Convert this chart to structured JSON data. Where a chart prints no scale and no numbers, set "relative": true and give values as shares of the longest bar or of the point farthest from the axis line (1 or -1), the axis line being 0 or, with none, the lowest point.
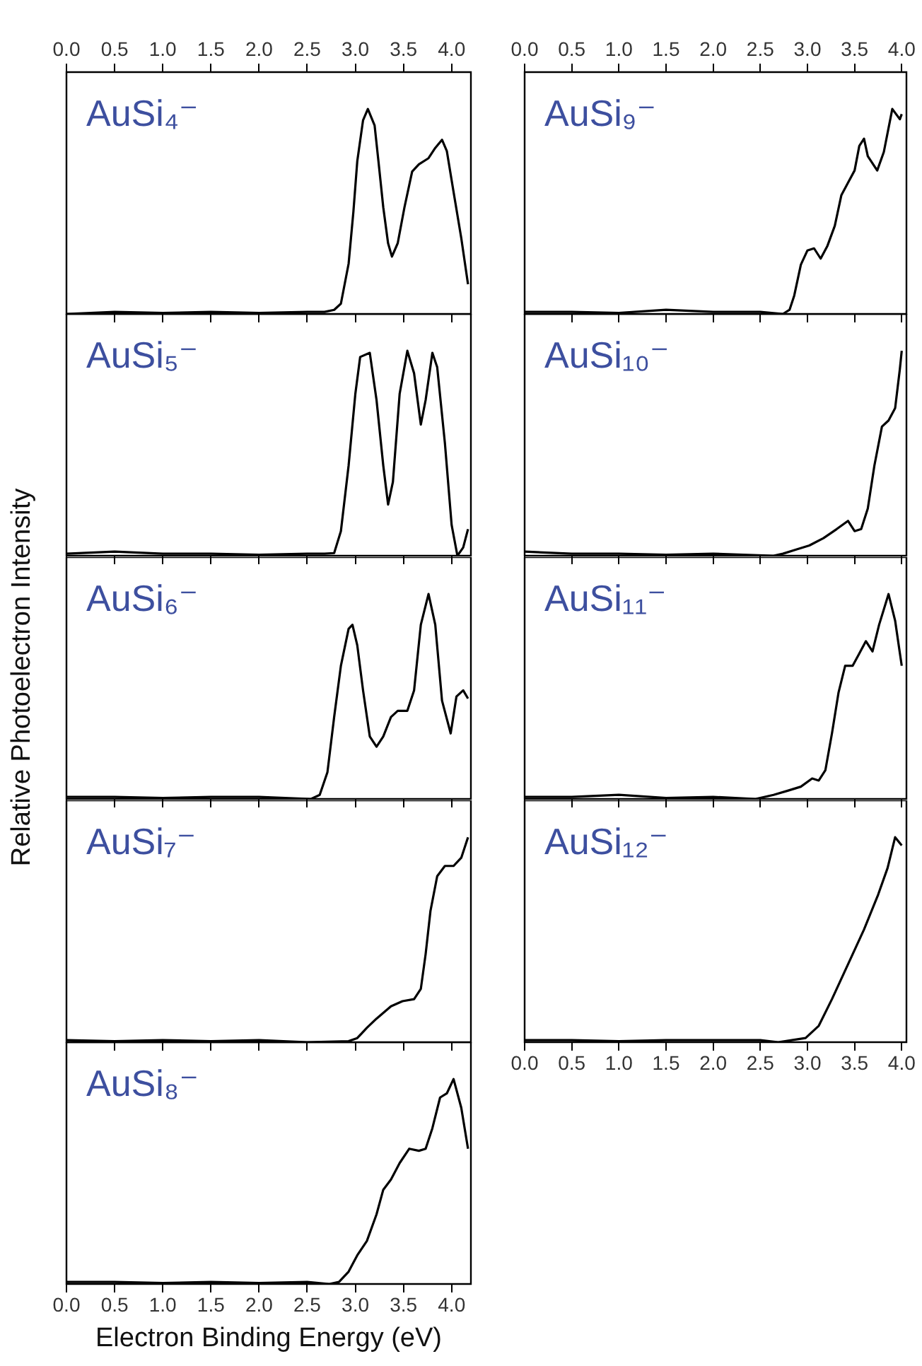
{
  "chart_data": [
    {
      "type": "line",
      "title": "AuSi₄⁻",
      "relative": true,
      "xlim": [
        0,
        4.2
      ],
      "xticks": [
        {
          "value": 0,
          "label": "0.0"
        },
        {
          "value": 0.5,
          "label": "0.5"
        },
        {
          "value": 1,
          "label": "1.0"
        },
        {
          "value": 1.5,
          "label": "1.5"
        },
        {
          "value": 2,
          "label": "2.0"
        },
        {
          "value": 2.5,
          "label": "2.5"
        },
        {
          "value": 3,
          "label": "3.0"
        },
        {
          "value": 3.5,
          "label": "3.5"
        },
        {
          "value": 4,
          "label": "4.0"
        }
      ],
      "x": [
        0,
        0.5,
        1,
        1.5,
        2,
        2.5,
        2.68,
        2.78,
        2.85,
        2.93,
        2.98,
        3.02,
        3.08,
        3.13,
        3.2,
        3.24,
        3.29,
        3.34,
        3.38,
        3.44,
        3.51,
        3.59,
        3.66,
        3.76,
        3.83,
        3.9,
        3.95,
        4.02,
        4.1,
        4.17
      ],
      "series": [
        {
          "color": "#000000",
          "values": [
            0,
            0.01,
            0.005,
            0.01,
            0.005,
            0.01,
            0.01,
            0.02,
            0.05,
            0.245,
            0.5,
            0.745,
            0.945,
            1,
            0.92,
            0.745,
            0.52,
            0.345,
            0.28,
            0.345,
            0.52,
            0.695,
            0.73,
            0.76,
            0.81,
            0.85,
            0.795,
            0.595,
            0.37,
            0.145
          ]
        }
      ]
    },
    {
      "type": "line",
      "title": "AuSi₅⁻",
      "relative": true,
      "xlim": [
        0,
        4.2
      ],
      "tick_labels": false,
      "x": [
        0,
        0.5,
        1,
        1.5,
        2,
        2.5,
        2.68,
        2.78,
        2.85,
        2.93,
        3.0,
        3.05,
        3.15,
        3.22,
        3.29,
        3.34,
        3.39,
        3.46,
        3.54,
        3.61,
        3.68,
        3.73,
        3.8,
        3.85,
        3.93,
        4.0,
        4.06,
        4.12,
        4.17
      ],
      "series": [
        {
          "color": "#000000",
          "values": [
            0.01,
            0.02,
            0.01,
            0.01,
            0.005,
            0.01,
            0.01,
            0.013,
            0.12,
            0.44,
            0.79,
            0.97,
            0.99,
            0.76,
            0.44,
            0.25,
            0.36,
            0.79,
            1,
            0.89,
            0.64,
            0.76,
            0.99,
            0.92,
            0.55,
            0.15,
            0,
            0.04,
            0.13
          ]
        }
      ]
    },
    {
      "type": "line",
      "title": "AuSi₆⁻",
      "ylabel": "Relative Photoelectron Intensity",
      "relative": true,
      "xlim": [
        0,
        4.2
      ],
      "tick_labels": false,
      "x": [
        0,
        0.5,
        1,
        1.5,
        2,
        2.54,
        2.63,
        2.71,
        2.78,
        2.85,
        2.93,
        2.97,
        3.02,
        3.08,
        3.15,
        3.22,
        3.29,
        3.37,
        3.44,
        3.54,
        3.61,
        3.68,
        3.76,
        3.83,
        3.9,
        3.99,
        4.05,
        4.12,
        4.17
      ],
      "series": [
        {
          "color": "#000000",
          "values": [
            0.01,
            0.01,
            0.005,
            0.01,
            0.01,
            0,
            0.02,
            0.13,
            0.4,
            0.65,
            0.83,
            0.85,
            0.75,
            0.53,
            0.305,
            0.255,
            0.305,
            0.4,
            0.43,
            0.43,
            0.53,
            0.85,
            1,
            0.85,
            0.48,
            0.32,
            0.5,
            0.53,
            0.49
          ]
        }
      ]
    },
    {
      "type": "line",
      "title": "AuSi₇⁻",
      "relative": true,
      "xlim": [
        0,
        4.2
      ],
      "tick_labels": false,
      "x": [
        0,
        0.5,
        1,
        1.5,
        2,
        2.5,
        2.93,
        3.02,
        3.12,
        3.22,
        3.37,
        3.49,
        3.61,
        3.68,
        3.73,
        3.78,
        3.85,
        3.93,
        4.02,
        4.1,
        4.17
      ],
      "series": [
        {
          "color": "#000000",
          "values": [
            0.01,
            0.005,
            0.01,
            0.005,
            0.01,
            0,
            0.005,
            0.02,
            0.07,
            0.115,
            0.175,
            0.2,
            0.21,
            0.26,
            0.43,
            0.64,
            0.81,
            0.86,
            0.86,
            0.9,
            1
          ]
        }
      ]
    },
    {
      "type": "line",
      "title": "AuSi₈⁻",
      "xlabel": "Electron Binding Energy (eV)",
      "relative": true,
      "xlim": [
        0,
        4.2
      ],
      "xticks": [
        {
          "value": 0,
          "label": "0.0"
        },
        {
          "value": 0.5,
          "label": "0.5"
        },
        {
          "value": 1,
          "label": "1.0"
        },
        {
          "value": 1.5,
          "label": "1.5"
        },
        {
          "value": 2,
          "label": "2.0"
        },
        {
          "value": 2.5,
          "label": "2.5"
        },
        {
          "value": 3,
          "label": "3.0"
        },
        {
          "value": 3.5,
          "label": "3.5"
        },
        {
          "value": 4,
          "label": "4.0"
        }
      ],
      "x": [
        0,
        0.5,
        1,
        1.5,
        2,
        2.5,
        2.73,
        2.83,
        2.93,
        3.02,
        3.12,
        3.22,
        3.29,
        3.37,
        3.46,
        3.56,
        3.66,
        3.73,
        3.8,
        3.88,
        3.95,
        4.02,
        4.1,
        4.17
      ],
      "series": [
        {
          "color": "#000000",
          "values": [
            0.01,
            0.01,
            0.005,
            0.01,
            0.005,
            0.01,
            0,
            0.01,
            0.06,
            0.14,
            0.21,
            0.34,
            0.46,
            0.51,
            0.59,
            0.66,
            0.65,
            0.66,
            0.76,
            0.91,
            0.93,
            1,
            0.86,
            0.66
          ]
        }
      ]
    },
    {
      "type": "line",
      "title": "AuSi₉⁻",
      "relative": true,
      "xlim": [
        0,
        4.05
      ],
      "xticks": [
        {
          "value": 0,
          "label": "0.0"
        },
        {
          "value": 0.5,
          "label": "0.5"
        },
        {
          "value": 1,
          "label": "1.0"
        },
        {
          "value": 1.5,
          "label": "1.5"
        },
        {
          "value": 2,
          "label": "2.0"
        },
        {
          "value": 2.5,
          "label": "2.5"
        },
        {
          "value": 3,
          "label": "3.0"
        },
        {
          "value": 3.5,
          "label": "3.5"
        },
        {
          "value": 4,
          "label": "4.0"
        }
      ],
      "x": [
        0,
        0.5,
        1,
        1.5,
        2,
        2.5,
        2.74,
        2.81,
        2.86,
        2.93,
        3.0,
        3.07,
        3.14,
        3.21,
        3.29,
        3.36,
        3.43,
        3.5,
        3.55,
        3.6,
        3.64,
        3.74,
        3.81,
        3.9,
        3.98,
        4.0
      ],
      "series": [
        {
          "color": "#000000",
          "values": [
            0.01,
            0.01,
            0.005,
            0.02,
            0.01,
            0.01,
            0,
            0.02,
            0.09,
            0.24,
            0.31,
            0.32,
            0.27,
            0.33,
            0.43,
            0.58,
            0.64,
            0.7,
            0.82,
            0.855,
            0.77,
            0.7,
            0.79,
            1,
            0.95,
            0.975
          ]
        }
      ]
    },
    {
      "type": "line",
      "title": "AuSi₁₀⁻",
      "relative": true,
      "xlim": [
        0,
        4.05
      ],
      "tick_labels": false,
      "x": [
        0,
        0.5,
        1,
        1.5,
        2,
        2.64,
        2.74,
        2.88,
        3.02,
        3.17,
        3.31,
        3.43,
        3.5,
        3.57,
        3.64,
        3.71,
        3.79,
        3.86,
        3.93,
        3.98,
        4.0
      ],
      "series": [
        {
          "color": "#000000",
          "values": [
            0.02,
            0.01,
            0.01,
            0.005,
            0.01,
            0,
            0.01,
            0.03,
            0.05,
            0.086,
            0.13,
            0.17,
            0.12,
            0.13,
            0.23,
            0.44,
            0.63,
            0.66,
            0.72,
            0.91,
            1
          ]
        }
      ]
    },
    {
      "type": "line",
      "title": "AuSi₁₁⁻",
      "relative": true,
      "xlim": [
        0,
        4.05
      ],
      "tick_labels": false,
      "x": [
        0,
        0.5,
        1,
        1.5,
        2,
        2.45,
        2.64,
        2.79,
        2.93,
        3.05,
        3.12,
        3.19,
        3.26,
        3.33,
        3.4,
        3.48,
        3.55,
        3.62,
        3.69,
        3.76,
        3.86,
        3.93,
        4.0
      ],
      "series": [
        {
          "color": "#000000",
          "values": [
            0.01,
            0.01,
            0.02,
            0.005,
            0.01,
            0,
            0.02,
            0.04,
            0.06,
            0.1,
            0.09,
            0.14,
            0.32,
            0.52,
            0.65,
            0.65,
            0.71,
            0.77,
            0.72,
            0.85,
            1,
            0.87,
            0.65
          ]
        }
      ]
    },
    {
      "type": "line",
      "title": "AuSi₁₂⁻",
      "relative": true,
      "xlim": [
        0,
        4.05
      ],
      "xticks": [
        {
          "value": 0,
          "label": "0.0"
        },
        {
          "value": 0.5,
          "label": "0.5"
        },
        {
          "value": 1,
          "label": "1.0"
        },
        {
          "value": 1.5,
          "label": "1.5"
        },
        {
          "value": 2,
          "label": "2.0"
        },
        {
          "value": 2.5,
          "label": "2.5"
        },
        {
          "value": 3,
          "label": "3.0"
        },
        {
          "value": 3.5,
          "label": "3.5"
        },
        {
          "value": 4,
          "label": "4.0"
        }
      ],
      "x": [
        0,
        0.5,
        1,
        1.5,
        2,
        2.5,
        2.69,
        2.98,
        3.12,
        3.26,
        3.45,
        3.6,
        3.75,
        3.85,
        3.93,
        4.0
      ],
      "series": [
        {
          "color": "#000000",
          "values": [
            0.01,
            0.01,
            0.005,
            0.01,
            0.01,
            0.01,
            0,
            0.02,
            0.08,
            0.21,
            0.4,
            0.55,
            0.72,
            0.85,
            1,
            0.96
          ]
        }
      ]
    }
  ]
}
